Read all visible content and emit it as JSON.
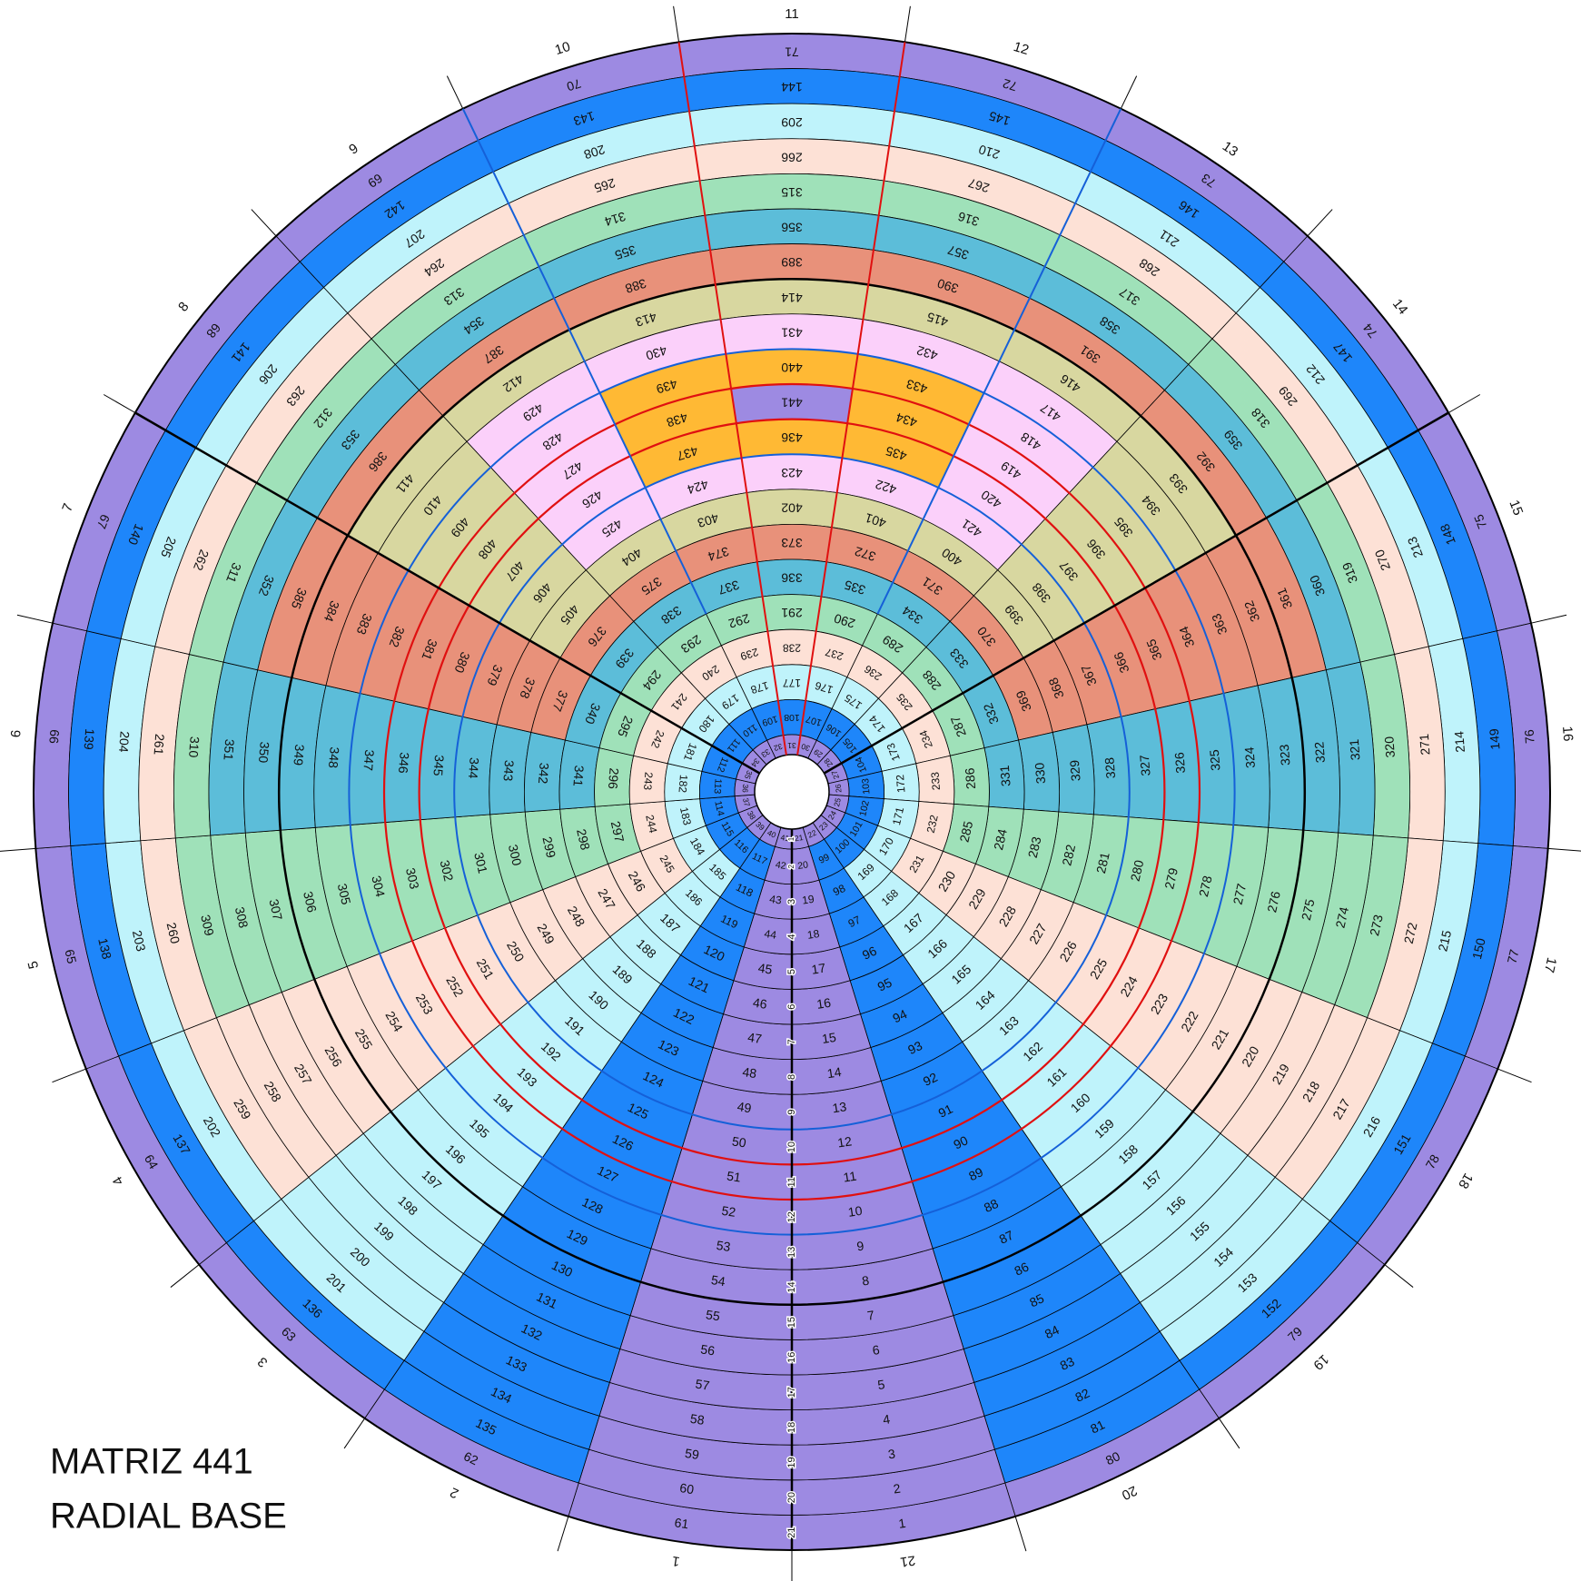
{
  "title_lines": [
    "MATRIZ 441",
    "RADIAL BASE"
  ],
  "sector_labels": [
    1,
    2,
    3,
    4,
    5,
    6,
    7,
    8,
    9,
    10,
    11,
    12,
    13,
    14,
    15,
    16,
    17,
    18,
    19,
    20,
    21
  ],
  "ring_labels": [
    21,
    20,
    19,
    18,
    17,
    16,
    15,
    14,
    13,
    12,
    11,
    10,
    9,
    8,
    7,
    6,
    5,
    4,
    3,
    2,
    1
  ],
  "layer_colors": [
    "#9d8ae2",
    "#1e86fa",
    "#bff3fb",
    "#fde1d6",
    "#9fe1b9",
    "#5cbdd9",
    "#e8917a",
    "#d8d7a0",
    "#fbd0fa",
    "#ffb934",
    "#9d8ae2"
  ],
  "rings": [
    [
      61,
      62,
      63,
      64,
      65,
      66,
      67,
      68,
      69,
      70,
      71,
      72,
      73,
      74,
      75,
      76,
      77,
      78,
      79,
      80,
      1
    ],
    [
      60,
      135,
      136,
      137,
      138,
      139,
      140,
      141,
      142,
      143,
      144,
      145,
      146,
      147,
      148,
      149,
      150,
      151,
      152,
      81,
      2
    ],
    [
      59,
      134,
      201,
      202,
      203,
      204,
      205,
      206,
      207,
      208,
      209,
      210,
      211,
      212,
      213,
      214,
      215,
      216,
      153,
      82,
      3
    ],
    [
      58,
      133,
      200,
      259,
      260,
      261,
      262,
      263,
      264,
      265,
      266,
      267,
      268,
      269,
      270,
      271,
      272,
      217,
      154,
      83,
      4
    ],
    [
      57,
      132,
      199,
      258,
      309,
      310,
      311,
      312,
      313,
      314,
      315,
      316,
      317,
      318,
      319,
      320,
      273,
      218,
      155,
      84,
      5
    ],
    [
      56,
      131,
      198,
      257,
      308,
      351,
      352,
      353,
      354,
      355,
      356,
      357,
      358,
      359,
      360,
      321,
      274,
      219,
      156,
      85,
      6
    ],
    [
      55,
      130,
      197,
      256,
      307,
      350,
      385,
      386,
      387,
      388,
      389,
      390,
      391,
      392,
      361,
      322,
      275,
      220,
      157,
      86,
      7
    ],
    [
      54,
      129,
      196,
      255,
      306,
      349,
      384,
      411,
      412,
      413,
      414,
      415,
      416,
      393,
      362,
      323,
      276,
      221,
      158,
      87,
      8
    ],
    [
      53,
      128,
      195,
      254,
      305,
      348,
      383,
      410,
      429,
      430,
      431,
      432,
      417,
      394,
      363,
      324,
      277,
      222,
      159,
      88,
      9
    ],
    [
      52,
      127,
      194,
      253,
      304,
      347,
      382,
      409,
      428,
      439,
      440,
      433,
      418,
      395,
      364,
      325,
      278,
      223,
      160,
      89,
      10
    ],
    [
      51,
      126,
      193,
      252,
      303,
      346,
      381,
      408,
      427,
      438,
      441,
      434,
      419,
      396,
      365,
      326,
      279,
      224,
      161,
      90,
      11
    ],
    [
      50,
      125,
      192,
      251,
      302,
      345,
      380,
      407,
      426,
      437,
      436,
      435,
      420,
      397,
      366,
      327,
      280,
      225,
      162,
      91,
      12
    ],
    [
      49,
      124,
      191,
      250,
      301,
      344,
      379,
      406,
      425,
      424,
      423,
      422,
      421,
      398,
      367,
      328,
      281,
      226,
      163,
      92,
      13
    ],
    [
      48,
      123,
      190,
      249,
      300,
      343,
      378,
      405,
      404,
      403,
      402,
      401,
      400,
      399,
      368,
      329,
      282,
      227,
      164,
      93,
      14
    ],
    [
      47,
      122,
      189,
      248,
      299,
      342,
      377,
      376,
      375,
      374,
      373,
      372,
      371,
      370,
      369,
      330,
      283,
      228,
      165,
      94,
      15
    ],
    [
      46,
      121,
      188,
      247,
      298,
      341,
      340,
      339,
      338,
      337,
      336,
      335,
      334,
      333,
      332,
      331,
      284,
      229,
      166,
      95,
      16
    ],
    [
      45,
      120,
      187,
      246,
      297,
      296,
      295,
      294,
      293,
      292,
      291,
      290,
      289,
      288,
      287,
      286,
      285,
      230,
      167,
      96,
      17
    ],
    [
      44,
      119,
      186,
      245,
      244,
      243,
      242,
      241,
      240,
      239,
      238,
      237,
      236,
      235,
      234,
      233,
      232,
      231,
      168,
      97,
      18
    ],
    [
      43,
      118,
      185,
      184,
      183,
      182,
      181,
      180,
      179,
      178,
      177,
      176,
      175,
      174,
      173,
      172,
      171,
      170,
      169,
      98,
      19
    ],
    [
      42,
      117,
      116,
      115,
      114,
      113,
      112,
      111,
      110,
      109,
      108,
      107,
      106,
      105,
      104,
      103,
      102,
      101,
      100,
      99,
      20
    ],
    [
      41,
      40,
      39,
      38,
      37,
      36,
      35,
      34,
      33,
      32,
      31,
      30,
      29,
      28,
      27,
      26,
      25,
      24,
      23,
      22,
      21
    ]
  ]
}
